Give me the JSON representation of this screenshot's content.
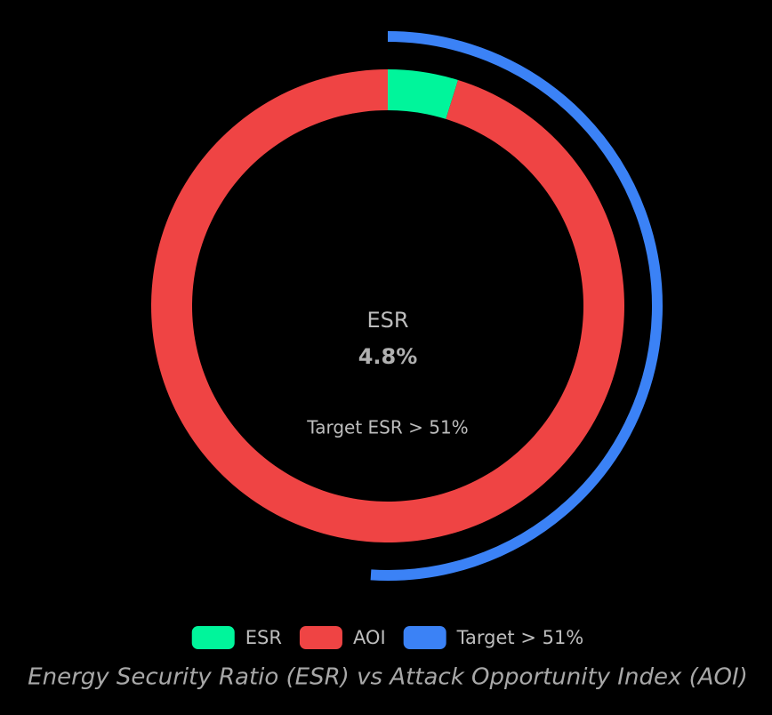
{
  "chart_data": {
    "type": "donut",
    "categories": [
      "ESR",
      "AOI"
    ],
    "values": [
      4.8,
      95.2
    ],
    "value_labels": [
      "4.8%",
      null
    ],
    "colors": [
      "#00f59b",
      "#ef4444"
    ],
    "target": {
      "name": "Target > 51%",
      "value": 51,
      "color": "#3b82f6"
    },
    "annotation": "Target ESR > 51%",
    "caption": "Energy Security Ratio (ESR) vs Attack Opportunity Index (AOI)"
  }
}
